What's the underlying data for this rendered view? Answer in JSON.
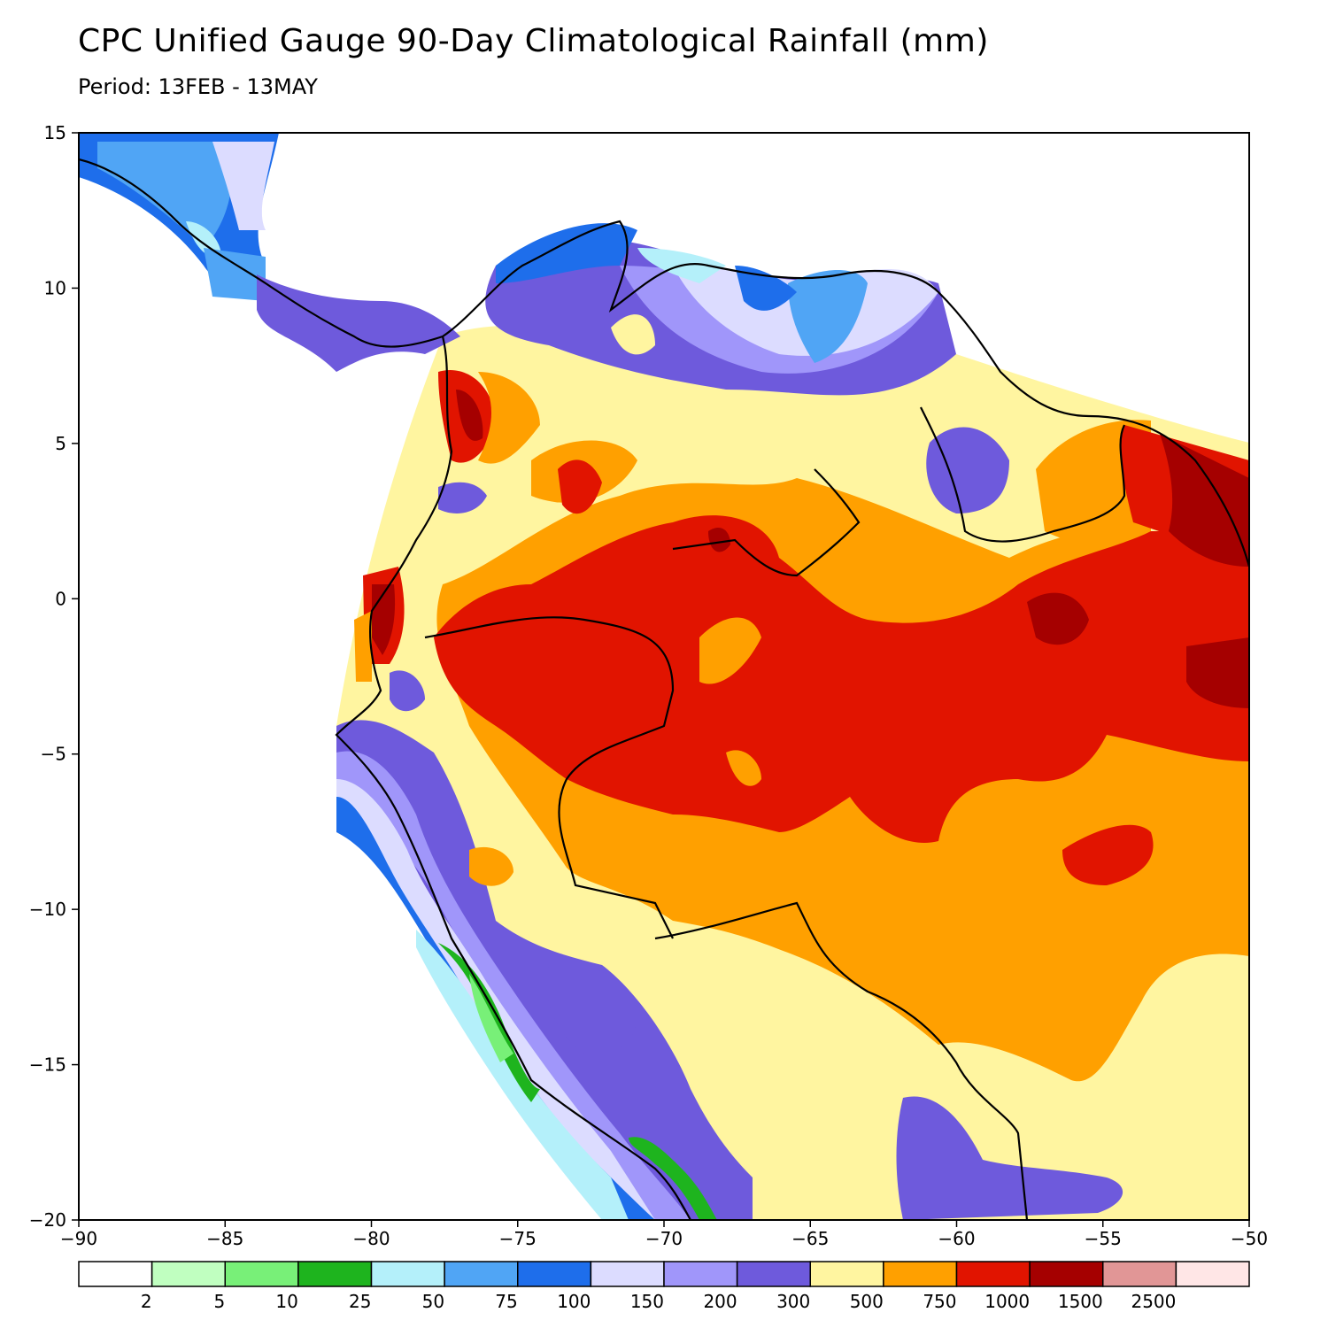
{
  "title": "CPC Unified Gauge 90-Day Climatological Rainfall (mm)",
  "subtitle": "Period: 13FEB - 13MAY",
  "axes": {
    "lon_ticks": [
      -90,
      -85,
      -80,
      -75,
      -70,
      -65,
      -60,
      -55,
      -50
    ],
    "lon_labels": [
      "−90",
      "−85",
      "−80",
      "−75",
      "−70",
      "−65",
      "−60",
      "−55",
      "−50"
    ],
    "lat_ticks": [
      15,
      10,
      5,
      0,
      -5,
      -10,
      -15,
      -20
    ],
    "lat_labels": [
      "15",
      "10",
      "5",
      "0",
      "−5",
      "−10",
      "−15",
      "−20"
    ],
    "lon_range": [
      -90,
      -50
    ],
    "lat_range": [
      -20,
      15
    ]
  },
  "colorbar": {
    "colors": [
      "#ffffff",
      "#c0ffc0",
      "#78f078",
      "#1eb41e",
      "#b4f0fa",
      "#50a5f5",
      "#1e6eeb",
      "#dcdcff",
      "#a096fa",
      "#6e5adc",
      "#fff5a0",
      "#ffa000",
      "#e11400",
      "#a50000",
      "#e19696",
      "#ffe6e6"
    ],
    "labels": [
      "2",
      "5",
      "10",
      "25",
      "50",
      "75",
      "100",
      "150",
      "200",
      "300",
      "500",
      "750",
      "1000",
      "1500",
      "2500"
    ]
  }
}
